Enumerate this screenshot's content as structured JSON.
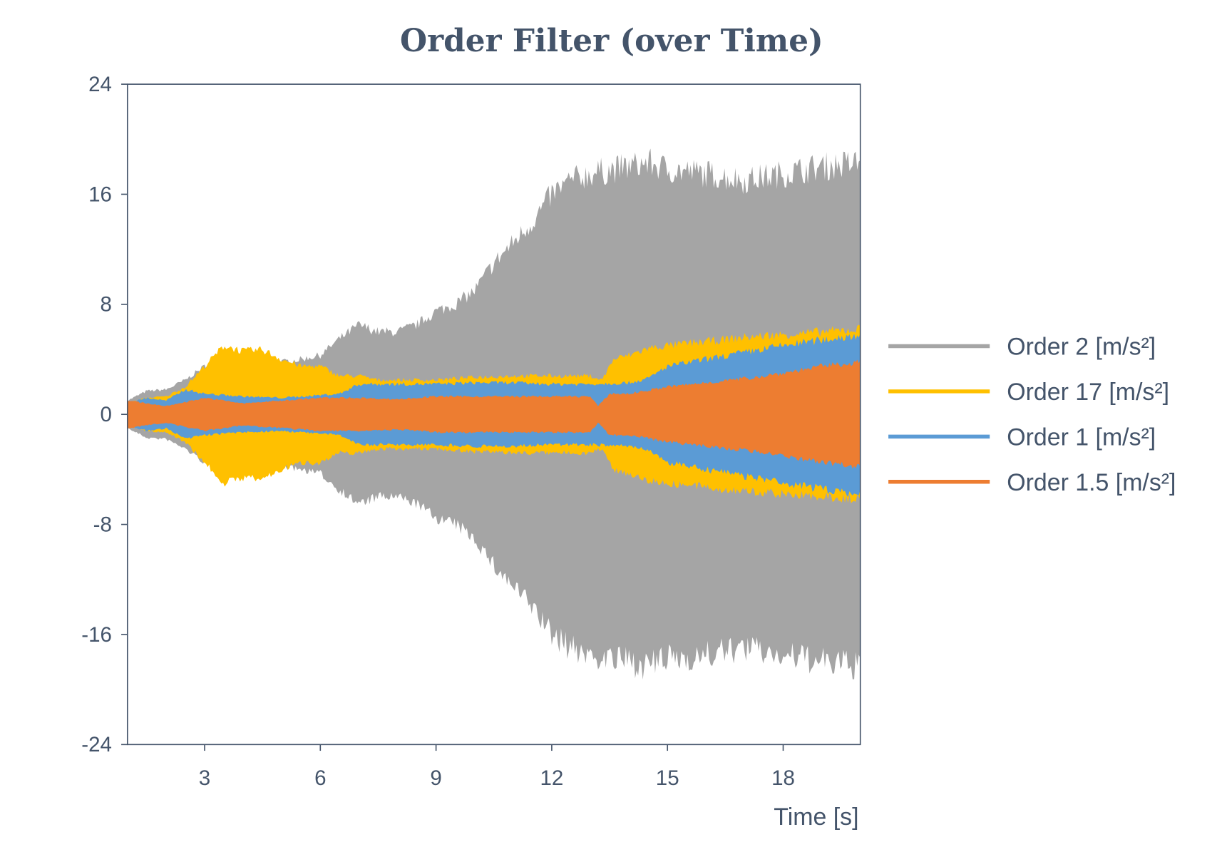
{
  "chart_data": {
    "type": "area",
    "title": "Order Filter (over Time)",
    "xlabel": "Time [s]",
    "ylabel": "",
    "xlim": [
      1,
      20
    ],
    "ylim": [
      -24,
      24
    ],
    "xticks": [
      3,
      6,
      9,
      12,
      15,
      18
    ],
    "yticks": [
      24,
      16,
      8,
      0,
      -8,
      -16,
      -24
    ],
    "grid": false,
    "legend_position": "right",
    "note": "Each series is a dense oscillating signal; values give its amplitude envelope (±) over time",
    "series": [
      {
        "name": "Order 2 [m/s²]",
        "color": "#a5a5a5",
        "t": [
          1,
          1.5,
          2,
          2.5,
          3,
          3.5,
          4,
          5,
          5.5,
          6,
          6.5,
          7,
          7.5,
          8,
          8.5,
          9,
          9.5,
          10,
          10.5,
          11,
          11.5,
          12,
          12.5,
          13,
          14,
          14.5,
          15,
          16,
          17,
          18,
          19,
          20
        ],
        "amplitude": [
          1,
          1.7,
          1.8,
          2.5,
          3.5,
          3.5,
          4,
          3.8,
          4,
          4.3,
          5.5,
          6.5,
          6,
          6,
          6.5,
          7.5,
          8,
          9,
          11,
          12.5,
          14,
          16,
          17,
          17.5,
          18,
          18.3,
          17.8,
          17.5,
          17,
          17.5,
          18,
          18.3
        ]
      },
      {
        "name": "Order 17 [m/s²]",
        "color": "#ffc000",
        "t": [
          1,
          1.5,
          2,
          2.5,
          3,
          3.5,
          4,
          4.5,
          5,
          5.5,
          6,
          6.5,
          7,
          7.5,
          8,
          9,
          10,
          11,
          12,
          13,
          13.3,
          13.6,
          14,
          14.5,
          15,
          16,
          17,
          18,
          19,
          20
        ],
        "amplitude": [
          0.8,
          1.2,
          1.3,
          2,
          3.5,
          5,
          4.6,
          4.7,
          4,
          3.5,
          3.5,
          2.8,
          2.8,
          2.5,
          2.5,
          2.5,
          2.7,
          2.8,
          2.8,
          2.8,
          2.5,
          4,
          4.3,
          4.8,
          5,
          5.3,
          5.6,
          5.8,
          6,
          6.2
        ]
      },
      {
        "name": "Order 1 [m/s²]",
        "color": "#5b9bd5",
        "t": [
          1,
          1.5,
          2,
          2.5,
          3,
          4,
          5,
          6,
          6.5,
          7,
          8,
          9,
          10,
          11,
          12,
          13,
          14,
          14.5,
          15,
          16,
          17,
          18,
          19,
          20
        ],
        "amplitude": [
          0.8,
          1.2,
          1,
          1.8,
          1.5,
          1.3,
          1.2,
          1.4,
          1.5,
          2.2,
          2.2,
          2.2,
          2.3,
          2.3,
          2.2,
          2.2,
          2.3,
          2.6,
          3.5,
          4,
          4.5,
          5,
          5.4,
          5.8
        ]
      },
      {
        "name": "Order 1.5 [m/s²]",
        "color": "#ed7d31",
        "t": [
          1,
          2,
          2.5,
          3,
          4,
          5,
          6,
          7,
          8,
          9,
          10,
          11,
          12,
          13,
          13.2,
          13.5,
          14,
          15,
          16,
          17,
          18,
          19,
          20
        ],
        "amplitude": [
          1,
          0.6,
          0.9,
          1.2,
          0.8,
          1,
          1.2,
          1.2,
          1.1,
          1.3,
          1.3,
          1.3,
          1.3,
          1.3,
          0.6,
          1.5,
          1.5,
          2,
          2.3,
          2.6,
          3,
          3.5,
          3.8
        ]
      }
    ]
  }
}
